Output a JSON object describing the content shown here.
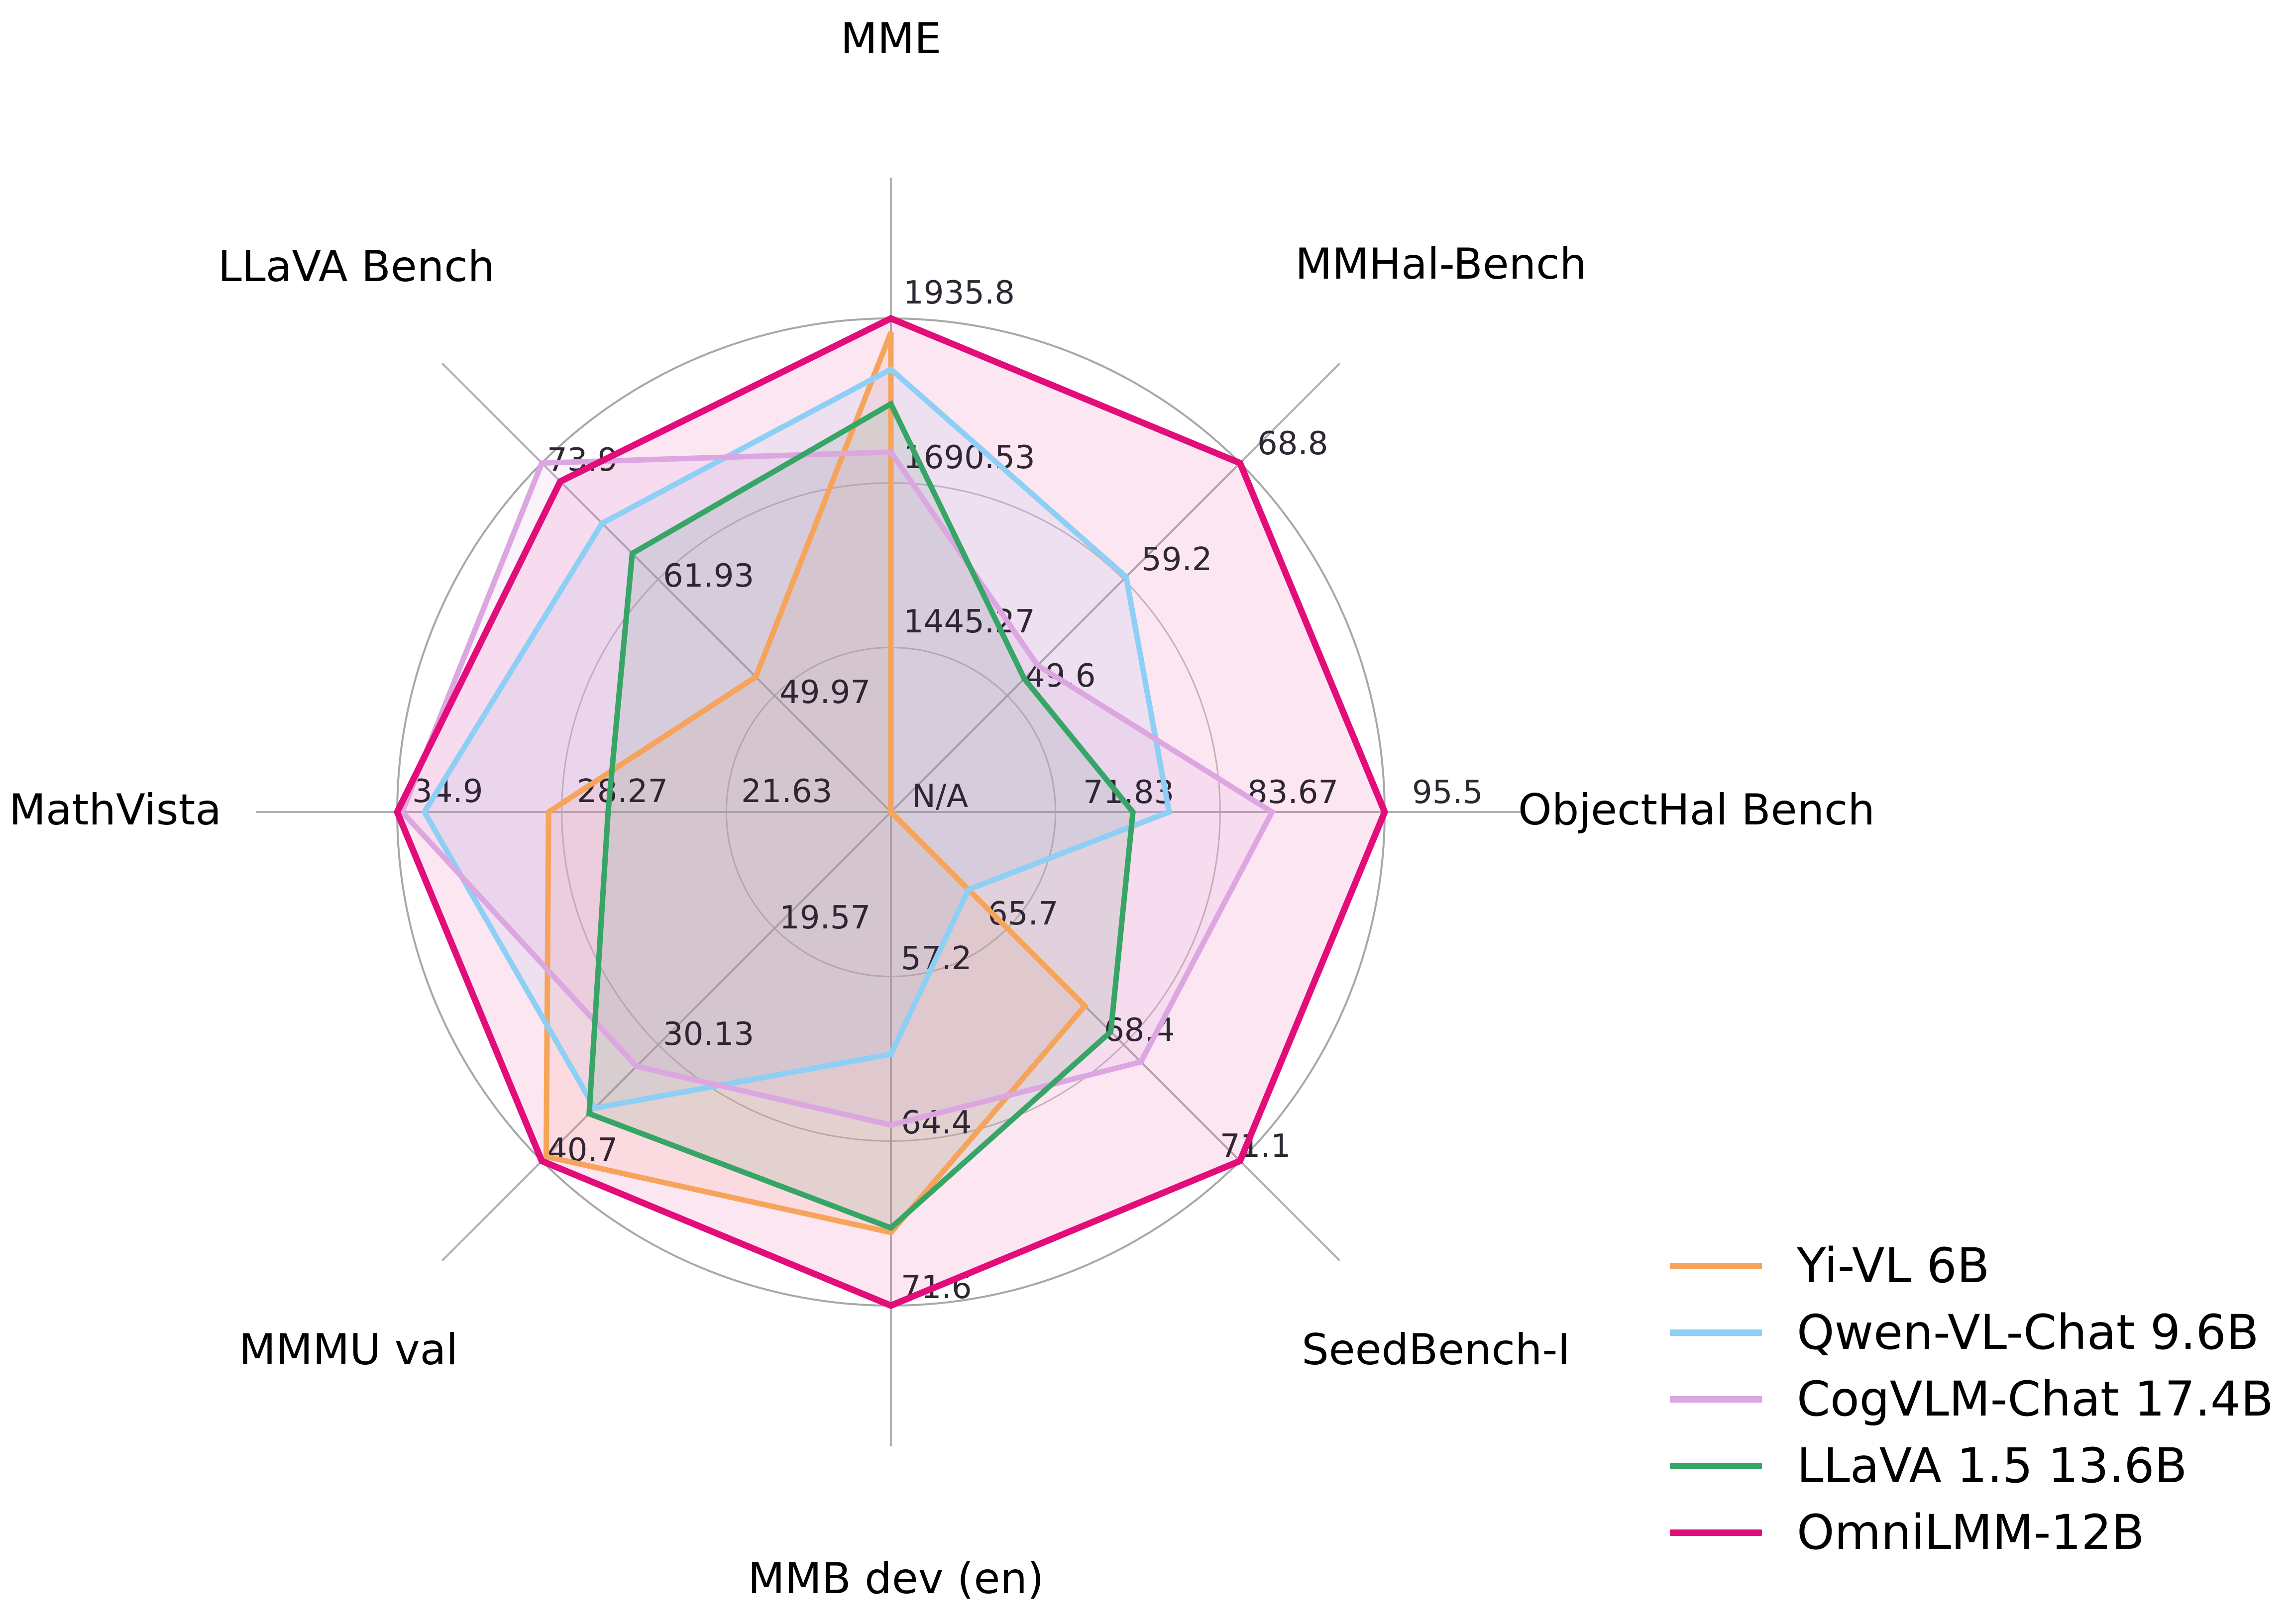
{
  "chart_data": {
    "type": "radar",
    "title": "",
    "grid": "circular",
    "legend_position": "lower right",
    "axes": [
      {
        "label": "MME",
        "min": 1200,
        "max": 1935.8,
        "ticks": [
          1445.27,
          1690.53,
          1935.8
        ]
      },
      {
        "label": "MMHal-Bench",
        "min": 40,
        "max": 68.8,
        "ticks": [
          49.6,
          59.2,
          68.8
        ]
      },
      {
        "label": "ObjectHal Bench",
        "min": 60,
        "max": 95.5,
        "ticks": [
          71.83,
          83.67,
          95.5
        ],
        "center_label": "N/A"
      },
      {
        "label": "SeedBench-I",
        "min": 63,
        "max": 71.1,
        "ticks": [
          65.7,
          68.4,
          71.1
        ]
      },
      {
        "label": "MMB dev (en)",
        "min": 50,
        "max": 71.6,
        "ticks": [
          57.2,
          64.4,
          71.6
        ]
      },
      {
        "label": "MMMU val",
        "min": 9,
        "max": 40.7,
        "ticks": [
          19.57,
          30.13,
          40.7
        ]
      },
      {
        "label": "MathVista",
        "min": 15,
        "max": 34.9,
        "ticks": [
          21.63,
          28.27,
          34.9
        ]
      },
      {
        "label": "LLaVA Bench",
        "min": 38,
        "max": 73.9,
        "ticks": [
          49.97,
          61.93,
          73.9
        ]
      }
    ],
    "series": [
      {
        "name": "Yi-VL 6B",
        "color": "#F6A45B",
        "values": [
          1915.1,
          null,
          null,
          67.5,
          68.4,
          40.3,
          28.8,
          51.9
        ]
      },
      {
        "name": "Qwen-VL-Chat 9.6B",
        "color": "#8DCFF5",
        "values": [
          1860.0,
          59.4,
          80.0,
          64.8,
          60.6,
          35.9,
          33.8,
          67.7
        ]
      },
      {
        "name": "CogVLM-Chat 17.4B",
        "color": "#DCA6E0",
        "values": [
          1736.6,
          52.1,
          87.4,
          68.8,
          63.7,
          32.1,
          34.7,
          73.9
        ]
      },
      {
        "name": "LLaVA 1.5 13.6B",
        "color": "#36A566",
        "values": [
          1808.4,
          51.0,
          77.4,
          68.1,
          68.2,
          36.4,
          26.4,
          64.6
        ]
      },
      {
        "name": "OmniLMM-12B",
        "color": "#E20C7B",
        "values": [
          1935.8,
          68.8,
          95.5,
          71.1,
          71.6,
          40.7,
          34.9,
          72.0
        ]
      }
    ]
  },
  "legend": {
    "items": [
      {
        "label": "Yi-VL 6B",
        "color": "#F6A45B"
      },
      {
        "label": "Qwen-VL-Chat 9.6B",
        "color": "#8DCFF5"
      },
      {
        "label": "CogVLM-Chat 17.4B",
        "color": "#DCA6E0"
      },
      {
        "label": "LLaVA 1.5 13.6B",
        "color": "#36A566"
      },
      {
        "label": "OmniLMM-12B",
        "color": "#E20C7B"
      }
    ]
  },
  "colors": {
    "grid_outer": "#A8A8A8",
    "grid_inner": "#C2C2C2",
    "spoke": "#B2B2B2",
    "tick_text": "#2E2733",
    "category_text": "#000000",
    "background": "#FFFFFF"
  }
}
